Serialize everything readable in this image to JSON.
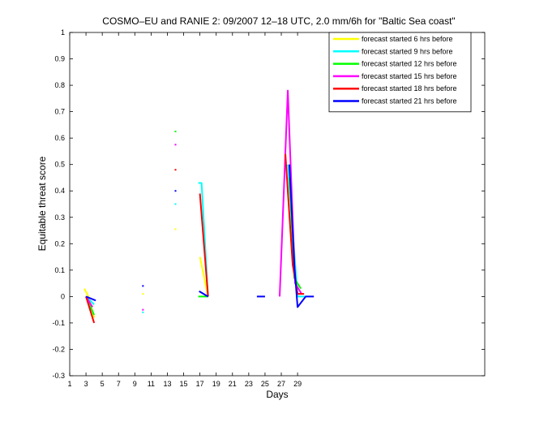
{
  "chart_data": {
    "type": "line",
    "title": "COSMO–EU and RANIE 2: 09/2007 12–18 UTC, 2.0 mm/6h for \"Baltic Sea coast\"",
    "xlabel": "Days",
    "ylabel": "Equitable threat score",
    "xlim": [
      1,
      52
    ],
    "ylim": [
      -0.3,
      1
    ],
    "xticks": [
      1,
      3,
      5,
      7,
      9,
      11,
      13,
      15,
      17,
      19,
      21,
      23,
      25,
      27,
      29
    ],
    "yticks": [
      -0.3,
      -0.2,
      -0.1,
      0,
      0.1,
      0.2,
      0.3,
      0.4,
      0.5,
      0.6,
      0.7,
      0.8,
      0.9,
      1
    ],
    "legend_position": "top-right",
    "grid": false,
    "series": [
      {
        "name": "forecast started 6 hrs before",
        "color": "#ffff00",
        "segments": [
          [
            [
              2.8,
              0.03
            ],
            [
              3.3,
              0.0
            ],
            [
              4.0,
              -0.08
            ]
          ],
          [
            [
              17.0,
              0.15
            ],
            [
              18.0,
              0.0
            ]
          ]
        ],
        "points": [
          [
            14.0,
            0.255
          ],
          [
            10.0,
            0.01
          ]
        ]
      },
      {
        "name": "forecast started 9 hrs before",
        "color": "#00ffff",
        "segments": [
          [
            [
              3.0,
              0.0
            ],
            [
              4.0,
              -0.03
            ]
          ],
          [
            [
              16.8,
              0.43
            ],
            [
              17.2,
              0.43
            ],
            [
              18.0,
              0.0
            ]
          ],
          [
            [
              27.8,
              0.5
            ],
            [
              28.4,
              0.25
            ],
            [
              29.0,
              0.0
            ],
            [
              30.0,
              0.0
            ]
          ]
        ],
        "points": [
          [
            14.0,
            0.35
          ],
          [
            10.0,
            -0.06
          ]
        ]
      },
      {
        "name": "forecast started 12 hrs before",
        "color": "#00ff00",
        "segments": [
          [
            [
              3.0,
              0.0
            ],
            [
              4.0,
              -0.07
            ]
          ],
          [
            [
              16.8,
              0.0
            ],
            [
              18.0,
              0.0
            ]
          ],
          [
            [
              28.0,
              0.45
            ],
            [
              28.6,
              0.07
            ],
            [
              29.4,
              0.03
            ]
          ]
        ],
        "points": [
          [
            14.0,
            0.625
          ]
        ]
      },
      {
        "name": "forecast started 15 hrs before",
        "color": "#ff00ff",
        "segments": [
          [
            [
              3.0,
              0.0
            ],
            [
              3.8,
              -0.04
            ]
          ],
          [
            [
              26.8,
              0.0
            ],
            [
              27.8,
              0.78
            ],
            [
              28.7,
              0.05
            ],
            [
              29.5,
              0.01
            ]
          ]
        ],
        "points": [
          [
            14.0,
            0.575
          ],
          [
            10.0,
            -0.05
          ]
        ]
      },
      {
        "name": "forecast started 18 hrs before",
        "color": "#ff0000",
        "segments": [
          [
            [
              3.0,
              0.0
            ],
            [
              4.0,
              -0.1
            ]
          ],
          [
            [
              17.0,
              0.39
            ],
            [
              18.0,
              0.0
            ]
          ],
          [
            [
              27.5,
              0.54
            ],
            [
              28.4,
              0.12
            ],
            [
              29.0,
              0.01
            ],
            [
              29.8,
              0.01
            ]
          ]
        ],
        "points": [
          [
            14.0,
            0.48
          ]
        ]
      },
      {
        "name": "forecast started 21 hrs before",
        "color": "#0000ff",
        "segments": [
          [
            [
              3.0,
              0.0
            ],
            [
              4.2,
              -0.015
            ]
          ],
          [
            [
              16.9,
              0.02
            ],
            [
              18.0,
              0.0
            ]
          ],
          [
            [
              24.0,
              0.0
            ],
            [
              25.0,
              0.0
            ]
          ],
          [
            [
              28.0,
              0.5
            ],
            [
              28.6,
              0.12
            ],
            [
              29.0,
              -0.04
            ],
            [
              30.0,
              0.0
            ],
            [
              31.0,
              0.0
            ]
          ]
        ],
        "points": [
          [
            14.0,
            0.4
          ],
          [
            10.0,
            0.04
          ]
        ]
      }
    ]
  }
}
